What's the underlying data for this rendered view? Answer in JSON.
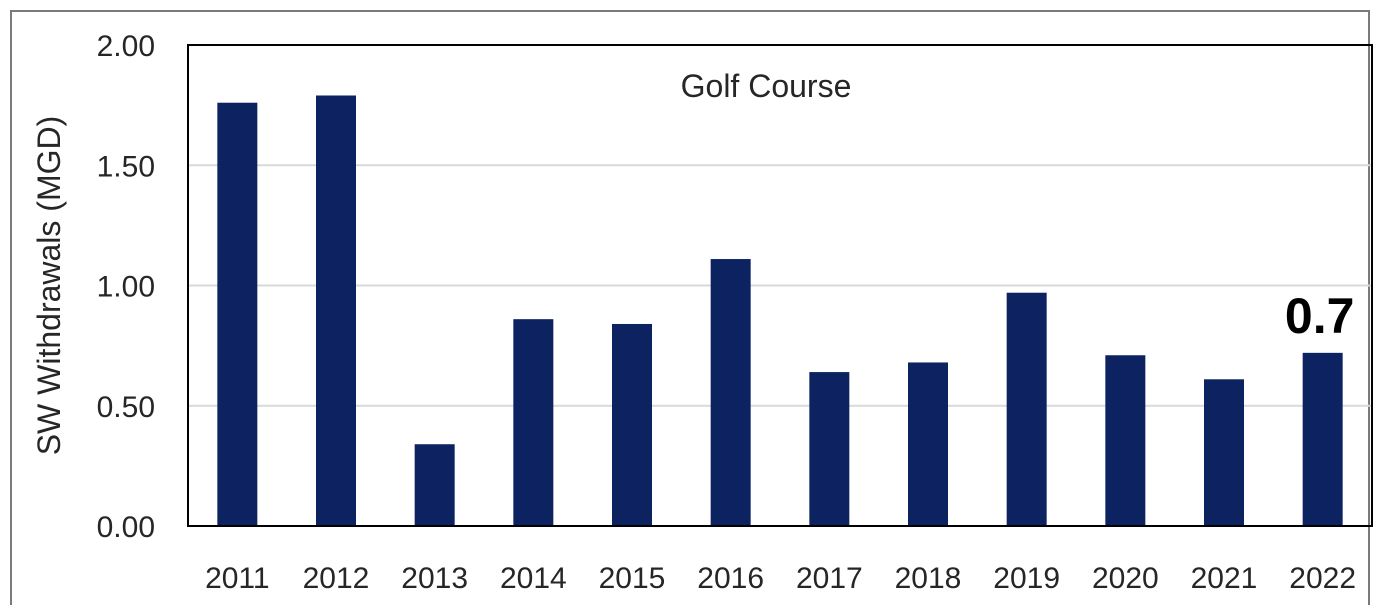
{
  "chart_data": {
    "type": "bar",
    "title": "Golf Course",
    "ylabel": "SW Withdrawals (MGD)",
    "xlabel": "",
    "categories": [
      "2011",
      "2012",
      "2013",
      "2014",
      "2015",
      "2016",
      "2017",
      "2018",
      "2019",
      "2020",
      "2021",
      "2022"
    ],
    "values": [
      1.76,
      1.79,
      0.34,
      0.86,
      0.84,
      1.11,
      0.64,
      0.68,
      0.97,
      0.71,
      0.61,
      0.72
    ],
    "ylim": [
      0,
      2.0
    ],
    "yticks": [
      "0.00",
      "0.50",
      "1.00",
      "1.50",
      "2.00"
    ],
    "ytick_values": [
      0,
      0.5,
      1.0,
      1.5,
      2.0
    ],
    "grid": true,
    "legend": "none",
    "annotation": "0.7",
    "bar_color": "#0d2260",
    "grid_color": "#d9d9d9"
  }
}
